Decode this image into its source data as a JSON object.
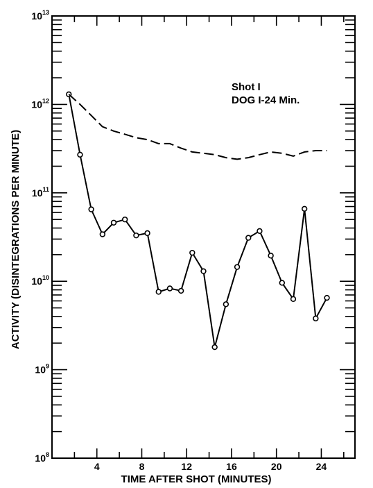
{
  "chart_data": {
    "type": "line",
    "title": "",
    "xlabel": "TIME AFTER SHOT (MINUTES)",
    "ylabel": "ACTIVITY (DISINTEGRATIONS PER MINUTE)",
    "annotation_lines": [
      "Shot I",
      "DOG I-24 Min."
    ],
    "x_ticks": [
      "4",
      "8",
      "12",
      "16",
      "20",
      "24"
    ],
    "y_tick_labels": [
      {
        "base": "10",
        "exp": "8"
      },
      {
        "base": "10",
        "exp": "9"
      },
      {
        "base": "10",
        "exp": "10"
      },
      {
        "base": "10",
        "exp": "11"
      },
      {
        "base": "10",
        "exp": "12"
      },
      {
        "base": "10",
        "exp": "13"
      }
    ],
    "xlim": [
      0,
      27
    ],
    "ylim": [
      100000000,
      10000000000000
    ],
    "y_scale": "log",
    "grid": false,
    "series": [
      {
        "style": "solid-with-circle-markers",
        "x": [
          1.5,
          2.5,
          3.5,
          4.5,
          5.5,
          6.5,
          7.5,
          8.5,
          9.5,
          10.5,
          11.5,
          12.5,
          13.5,
          14.5,
          15.5,
          16.5,
          17.5,
          18.5,
          19.5,
          20.5,
          21.5,
          22.5,
          23.5,
          24.5
        ],
        "y": [
          1300000000000.0,
          270000000000.0,
          65000000000.0,
          34000000000.0,
          46000000000.0,
          50000000000.0,
          33000000000.0,
          35000000000.0,
          7600000000.0,
          8300000000.0,
          7800000000.0,
          21000000000.0,
          13000000000.0,
          1800000000.0,
          5500000000.0,
          14500000000.0,
          31000000000.0,
          37000000000.0,
          19500000000.0,
          9600000000.0,
          6300000000.0,
          66000000000.0,
          3800000000.0,
          6500000000.0
        ]
      },
      {
        "style": "dashed",
        "x": [
          1.5,
          2.5,
          3.5,
          4.5,
          5.5,
          6.5,
          7.5,
          8.5,
          9.5,
          10.5,
          11.5,
          12.5,
          13.5,
          14.5,
          15.5,
          16.5,
          17.5,
          18.5,
          19.5,
          20.5,
          21.5,
          22.5,
          23.5,
          24.5
        ],
        "y": [
          1300000000000.0,
          1000000000000.0,
          750000000000.0,
          560000000000.0,
          500000000000.0,
          460000000000.0,
          420000000000.0,
          400000000000.0,
          360000000000.0,
          360000000000.0,
          320000000000.0,
          290000000000.0,
          280000000000.0,
          270000000000.0,
          250000000000.0,
          240000000000.0,
          250000000000.0,
          270000000000.0,
          290000000000.0,
          280000000000.0,
          260000000000.0,
          290000000000.0,
          300000000000.0,
          300000000000.0
        ]
      }
    ]
  }
}
